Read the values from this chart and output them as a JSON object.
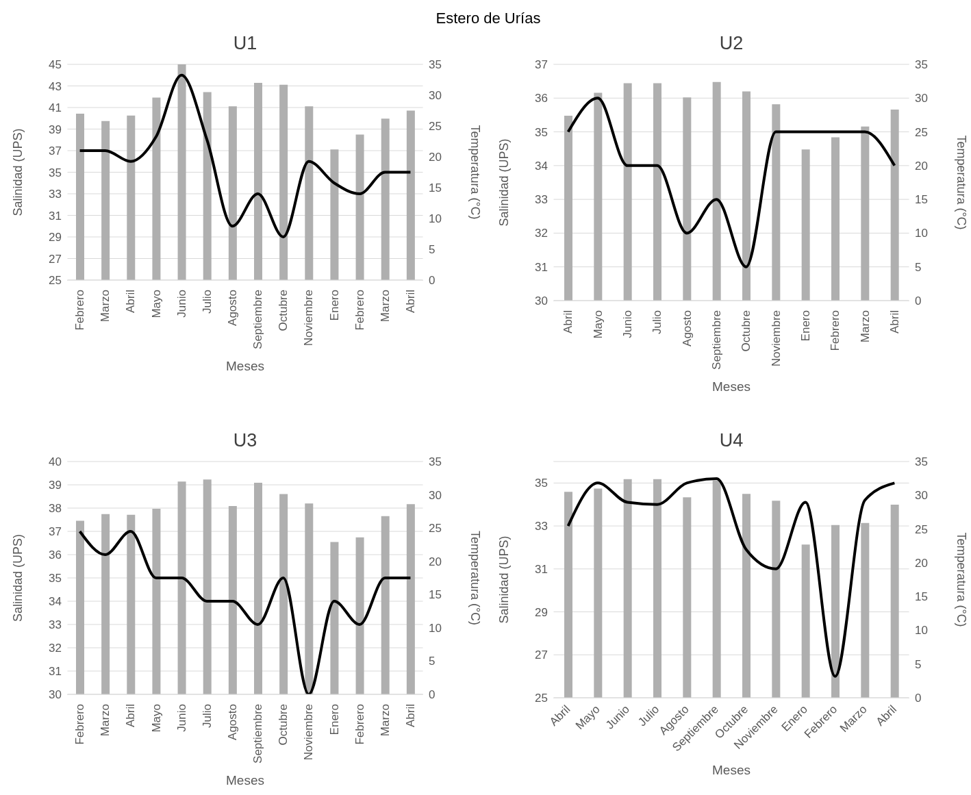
{
  "chart_data": [
    {
      "type": "bar",
      "title": "U1",
      "annotations": [
        "Estero de Urías"
      ],
      "xlabel": "Meses",
      "ylabel": "Salinidad (UPS)",
      "y2label": "Temperatura (°C)",
      "categories": [
        "Febrero",
        "Marzo",
        "Abril",
        "Mayo",
        "Junio",
        "Julio",
        "Agosto",
        "Septiembre",
        "Octubre",
        "Noviembre",
        "Enero",
        "Febrero",
        "Marzo",
        "Abril"
      ],
      "series": [
        {
          "axis": "y2",
          "color": "#afafaf",
          "values": [
            27.0,
            25.8,
            26.7,
            29.6,
            35.0,
            30.5,
            28.2,
            32.0,
            31.7,
            28.2,
            21.2,
            23.6,
            26.2,
            27.5
          ]
        },
        {
          "type": "line",
          "axis": "y",
          "color": "#000000",
          "values": [
            37,
            37,
            36,
            38.3,
            44,
            38,
            30,
            33,
            29,
            36,
            34,
            33,
            35,
            35
          ]
        }
      ],
      "ylim": [
        25,
        45
      ],
      "yticks": [
        25,
        27,
        29,
        31,
        33,
        35,
        37,
        39,
        41,
        43,
        45
      ],
      "y2lim": [
        0,
        35
      ],
      "y2ticks": [
        0,
        5,
        10,
        15,
        20,
        25,
        30,
        35
      ],
      "grid": "y",
      "legend": false
    },
    {
      "type": "bar",
      "title": "U2",
      "xlabel": "Meses",
      "ylabel": "Salinidad (UPS)",
      "y2label": "Temperatura (°C)",
      "categories": [
        "Abril",
        "Mayo",
        "Junio",
        "Julio",
        "Agosto",
        "Septiembre",
        "Octubre",
        "Noviembre",
        "Enero",
        "Febrero",
        "Marzo",
        "Abril"
      ],
      "series": [
        {
          "axis": "y2",
          "color": "#afafaf",
          "values": [
            27.4,
            30.8,
            32.2,
            32.2,
            30.1,
            32.4,
            31.0,
            29.1,
            22.4,
            24.2,
            25.8,
            28.3
          ]
        },
        {
          "type": "line",
          "axis": "y",
          "color": "#000000",
          "values": [
            35,
            36,
            34,
            34,
            32,
            33,
            31,
            35,
            35,
            35,
            35,
            34
          ]
        }
      ],
      "ylim": [
        30,
        37
      ],
      "yticks": [
        30,
        31,
        32,
        33,
        34,
        35,
        36,
        37
      ],
      "y2lim": [
        0,
        35
      ],
      "y2ticks": [
        0,
        5,
        10,
        15,
        20,
        25,
        30,
        35
      ],
      "grid": "y",
      "legend": false
    },
    {
      "type": "bar",
      "title": "U3",
      "xlabel": "Meses",
      "ylabel": "Salinidad (UPS)",
      "y2label": "Temperatura (°C)",
      "categories": [
        "Febrero",
        "Marzo",
        "Abril",
        "Mayo",
        "Junio",
        "Julio",
        "Agosto",
        "Septiembre",
        "Octubre",
        "Noviembre",
        "Enero",
        "Febrero",
        "Marzo",
        "Abril"
      ],
      "series": [
        {
          "axis": "y2",
          "color": "#afafaf",
          "values": [
            26.1,
            27.1,
            27.0,
            27.9,
            32.0,
            32.3,
            28.3,
            31.8,
            30.1,
            28.7,
            22.9,
            23.6,
            26.8,
            28.6
          ]
        },
        {
          "type": "line",
          "axis": "y",
          "color": "#000000",
          "values": [
            37,
            36,
            37,
            35,
            35,
            34,
            34,
            33,
            35,
            30,
            34,
            33,
            35,
            35
          ]
        }
      ],
      "ylim": [
        30,
        40
      ],
      "yticks": [
        30,
        31,
        32,
        33,
        34,
        35,
        36,
        37,
        38,
        39,
        40
      ],
      "y2lim": [
        0,
        35
      ],
      "y2ticks": [
        0,
        5,
        10,
        15,
        20,
        25,
        30,
        35
      ],
      "grid": "y",
      "legend": false
    },
    {
      "type": "bar",
      "title": "U4",
      "xlabel": "Meses",
      "ylabel": "Salinidad (UPS)",
      "y2label": "Temperatura (°C)",
      "categories": [
        "Abril",
        "Mayo",
        "Junio",
        "Julio",
        "Agosto",
        "Septiembre",
        "Octubre",
        "Noviembre",
        "Enero",
        "Febrero",
        "Marzo",
        "Abril"
      ],
      "series": [
        {
          "axis": "y2",
          "color": "#afafaf",
          "values": [
            30.5,
            31.0,
            32.4,
            32.4,
            29.7,
            32.2,
            30.2,
            29.2,
            22.7,
            25.6,
            25.9,
            28.6
          ]
        },
        {
          "type": "line",
          "axis": "y",
          "color": "#000000",
          "values": [
            33,
            35,
            34.1,
            34,
            35,
            35.2,
            31.9,
            31,
            34.1,
            26,
            34.2,
            35
          ]
        }
      ],
      "ylim": [
        25,
        36
      ],
      "yticks": [
        25,
        27,
        29,
        31,
        33,
        35
      ],
      "y2lim": [
        0,
        35
      ],
      "y2ticks": [
        0,
        5,
        10,
        15,
        20,
        25,
        30,
        35
      ],
      "grid": "y",
      "legend": false
    }
  ]
}
